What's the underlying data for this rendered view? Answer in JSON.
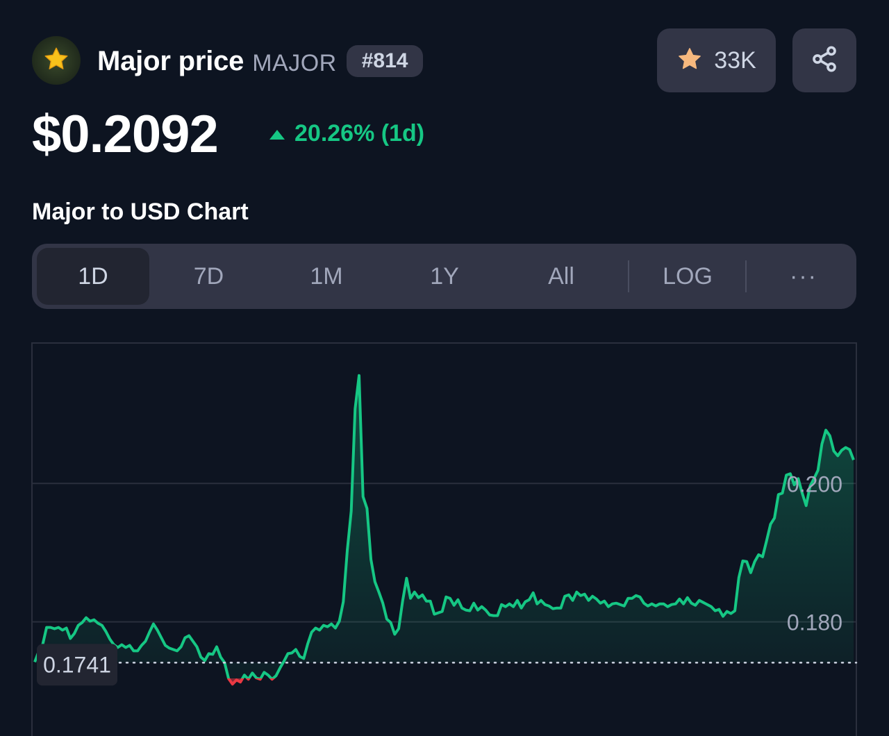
{
  "coin": {
    "name": "Major price",
    "symbol": "MAJOR",
    "rank": "#814",
    "watchlist_count": "33K",
    "price": "$0.2092",
    "change": "20.26% (1d)",
    "icon": "star-icon"
  },
  "chart_heading": "Major to USD Chart",
  "range_tabs": [
    "1D",
    "7D",
    "1M",
    "1Y",
    "All",
    "LOG",
    "···"
  ],
  "active_range": "1D",
  "colors": {
    "up": "#16c784",
    "down": "#ea3943",
    "background": "#0d1421",
    "button": "#323546"
  },
  "chart_data": {
    "type": "area",
    "title": "",
    "xlabel": "",
    "ylabel": "",
    "ylim": [
      0.1635,
      0.2203
    ],
    "yticks": [
      0.18,
      0.2
    ],
    "ytick_labels": [
      "0.180",
      "0.200"
    ],
    "baseline": 0.1741,
    "baseline_label": "0.1741",
    "grid": true,
    "series": [
      {
        "values": [
          0.1742,
          0.1757,
          0.1767,
          0.1792,
          0.1792,
          0.179,
          0.1792,
          0.1788,
          0.1791,
          0.1776,
          0.1783,
          0.1795,
          0.1799,
          0.1806,
          0.1801,
          0.1803,
          0.1798,
          0.1795,
          0.1786,
          0.1775,
          0.1767,
          0.1763,
          0.1767,
          0.1763,
          0.1766,
          0.1758,
          0.1758,
          0.1766,
          0.1772,
          0.1785,
          0.1797,
          0.1788,
          0.1777,
          0.1766,
          0.1762,
          0.176,
          0.1758,
          0.1764,
          0.1777,
          0.178,
          0.1772,
          0.1764,
          0.1749,
          0.1744,
          0.1754,
          0.1753,
          0.1764,
          0.1749,
          0.1741,
          0.1718,
          0.171,
          0.1716,
          0.1713,
          0.1723,
          0.1717,
          0.1726,
          0.1719,
          0.1717,
          0.1727,
          0.1723,
          0.1717,
          0.1722,
          0.1733,
          0.1743,
          0.1754,
          0.1755,
          0.176,
          0.175,
          0.1747,
          0.1768,
          0.1785,
          0.1791,
          0.1788,
          0.1795,
          0.1793,
          0.1797,
          0.1791,
          0.1801,
          0.1829,
          0.1903,
          0.196,
          0.2108,
          0.2156,
          0.1981,
          0.1964,
          0.189,
          0.1858,
          0.1843,
          0.1827,
          0.1804,
          0.1799,
          0.1782,
          0.179,
          0.183,
          0.1863,
          0.1834,
          0.1843,
          0.1835,
          0.1839,
          0.183,
          0.183,
          0.1811,
          0.1813,
          0.1815,
          0.1836,
          0.1834,
          0.1824,
          0.1832,
          0.182,
          0.1817,
          0.1816,
          0.1827,
          0.1817,
          0.1822,
          0.1817,
          0.181,
          0.1809,
          0.1809,
          0.1825,
          0.1822,
          0.1826,
          0.1822,
          0.1831,
          0.182,
          0.1829,
          0.1832,
          0.1842,
          0.1826,
          0.1831,
          0.1825,
          0.1823,
          0.1819,
          0.182,
          0.182,
          0.1837,
          0.1839,
          0.1831,
          0.1843,
          0.1838,
          0.184,
          0.1831,
          0.1837,
          0.1833,
          0.1827,
          0.183,
          0.1822,
          0.1826,
          0.1827,
          0.1825,
          0.1823,
          0.1834,
          0.1834,
          0.1838,
          0.1836,
          0.1827,
          0.1823,
          0.1826,
          0.1823,
          0.1826,
          0.1826,
          0.1822,
          0.1825,
          0.1826,
          0.1833,
          0.1826,
          0.1835,
          0.1827,
          0.1824,
          0.1831,
          0.1828,
          0.1825,
          0.1822,
          0.1816,
          0.1818,
          0.1808,
          0.1815,
          0.1812,
          0.1816,
          0.1864,
          0.1888,
          0.1887,
          0.1871,
          0.1887,
          0.1897,
          0.1894,
          0.1917,
          0.1941,
          0.195,
          0.1984,
          0.1986,
          0.2012,
          0.2014,
          0.1998,
          0.2007,
          0.1986,
          0.1968,
          0.1996,
          0.2007,
          0.2019,
          0.2057,
          0.2077,
          0.2069,
          0.2047,
          0.204,
          0.2048,
          0.2052,
          0.2049,
          0.2034
        ]
      }
    ],
    "colors": {
      "above": "#16c784",
      "below": "#ea3943"
    }
  }
}
